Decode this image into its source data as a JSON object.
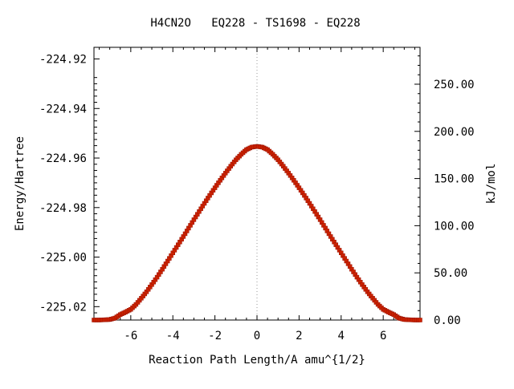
{
  "chart_data": {
    "type": "line",
    "title": "H4CN2O   EQ228 - TS1698 - EQ228",
    "xlabel": "Reaction Path Length/A amu^{1/2}",
    "ylabel": "Energy/Hartree",
    "y2label": "kJ/mol",
    "xlim": [
      -7.75,
      7.75
    ],
    "ylim": [
      -225.0254,
      -224.9153
    ],
    "y2lim": [
      0,
      289.1
    ],
    "x_ticks": [
      -6,
      -4,
      -2,
      0,
      2,
      4,
      6
    ],
    "x_tick_labels": [
      "-6",
      "-4",
      "-2",
      "0",
      "2",
      "4",
      "6"
    ],
    "y_ticks": [
      -224.92,
      -224.94,
      -224.96,
      -224.98,
      -225.0,
      -225.02
    ],
    "y_tick_labels": [
      "-224.92",
      "-224.94",
      "-224.96",
      "-224.98",
      "-225.00",
      "-225.02"
    ],
    "y2_ticks": [
      0,
      50,
      100,
      150,
      200,
      250
    ],
    "y2_tick_labels": [
      "0.00",
      "50.00",
      "100.00",
      "150.00",
      "200.00",
      "250.00"
    ],
    "reference_line_x": 0,
    "grid": false,
    "colors": {
      "line": "#00aa00",
      "marker": "#cc2200",
      "reference_line": "#999999",
      "axis": "#000000"
    },
    "series": [
      {
        "x": [
          -7.75,
          -7.5,
          -7.25,
          -7.0,
          -6.75,
          -6.5,
          -6.25,
          -6.0,
          -5.75,
          -5.5,
          -5.25,
          -5.0,
          -4.75,
          -4.5,
          -4.25,
          -4.0,
          -3.75,
          -3.5,
          -3.25,
          -3.0,
          -2.75,
          -2.5,
          -2.25,
          -2.0,
          -1.75,
          -1.5,
          -1.25,
          -1.0,
          -0.75,
          -0.5,
          -0.25,
          0.0,
          0.25,
          0.5,
          0.75,
          1.0,
          1.25,
          1.5,
          1.75,
          2.0,
          2.25,
          2.5,
          2.75,
          3.0,
          3.25,
          3.5,
          3.75,
          4.0,
          4.25,
          4.5,
          4.75,
          5.0,
          5.25,
          5.5,
          5.75,
          6.0,
          6.25,
          6.5,
          6.75,
          7.0,
          7.25,
          7.5,
          7.75
        ],
        "y": [
          -225.0254,
          -225.0254,
          -225.0253,
          -225.0252,
          -225.0246,
          -225.0232,
          -225.0222,
          -225.0211,
          -225.0191,
          -225.0166,
          -225.014,
          -225.0111,
          -225.0081,
          -225.0049,
          -225.0016,
          -224.9983,
          -224.995,
          -224.9917,
          -224.9883,
          -224.9849,
          -224.9816,
          -224.9783,
          -224.9751,
          -224.972,
          -224.969,
          -224.9661,
          -224.9633,
          -224.9607,
          -224.9585,
          -224.9566,
          -224.9556,
          -224.9553,
          -224.9556,
          -224.9566,
          -224.9585,
          -224.9607,
          -224.9633,
          -224.9661,
          -224.969,
          -224.972,
          -224.9751,
          -224.9783,
          -224.9816,
          -224.9849,
          -224.9883,
          -224.9917,
          -224.995,
          -224.9983,
          -225.0016,
          -225.0049,
          -225.0081,
          -225.0111,
          -225.014,
          -225.0166,
          -225.0191,
          -225.0211,
          -225.0222,
          -225.0232,
          -225.0246,
          -225.0252,
          -225.0253,
          -225.0254,
          -225.0254
        ]
      }
    ]
  }
}
